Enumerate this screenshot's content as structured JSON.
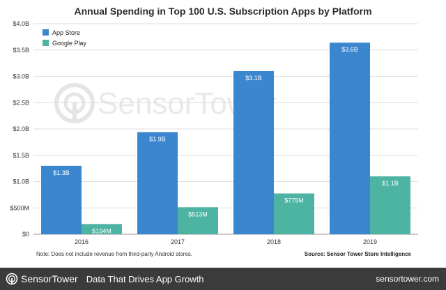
{
  "chart_data": {
    "type": "bar",
    "title": "Annual Spending in Top 100 U.S. Subscription Apps by Platform",
    "categories": [
      "2016",
      "2017",
      "2018",
      "2019"
    ],
    "series": [
      {
        "name": "App Store",
        "color": "#3a87cf",
        "values": [
          1.3,
          1.94,
          3.1,
          3.64
        ],
        "labels": [
          "$1.3B",
          "$1.9B",
          "$3.1B",
          "$3.6B"
        ]
      },
      {
        "name": "Google Play",
        "color": "#4db3a2",
        "values": [
          0.194,
          0.513,
          0.775,
          1.1
        ],
        "labels": [
          "$194M",
          "$513M",
          "$775M",
          "$1.1B"
        ]
      }
    ],
    "ylim": [
      0,
      4.0
    ],
    "yticks": [
      {
        "value": 0,
        "label": "$0"
      },
      {
        "value": 0.5,
        "label": "$500M"
      },
      {
        "value": 1.0,
        "label": "$1.0B"
      },
      {
        "value": 1.5,
        "label": "$1.5B"
      },
      {
        "value": 2.0,
        "label": "$2.0B"
      },
      {
        "value": 2.5,
        "label": "$2.5B"
      },
      {
        "value": 3.0,
        "label": "$3.0B"
      },
      {
        "value": 3.5,
        "label": "$3.5B"
      },
      {
        "value": 4.0,
        "label": "$4.0B"
      }
    ],
    "grid": true,
    "legend_position": "top-left",
    "note": "Note: Does not include revenue from third-party Android stores.",
    "source": "Source: Sensor Tower Store Intelligence"
  },
  "watermark": "SensorTower",
  "footer": {
    "brand": "SensorTower",
    "tagline": "Data That Drives App Growth",
    "url": "sensortower.com"
  },
  "colors": {
    "footer_bg": "#3b3b3b",
    "grid": "#dddddd"
  }
}
